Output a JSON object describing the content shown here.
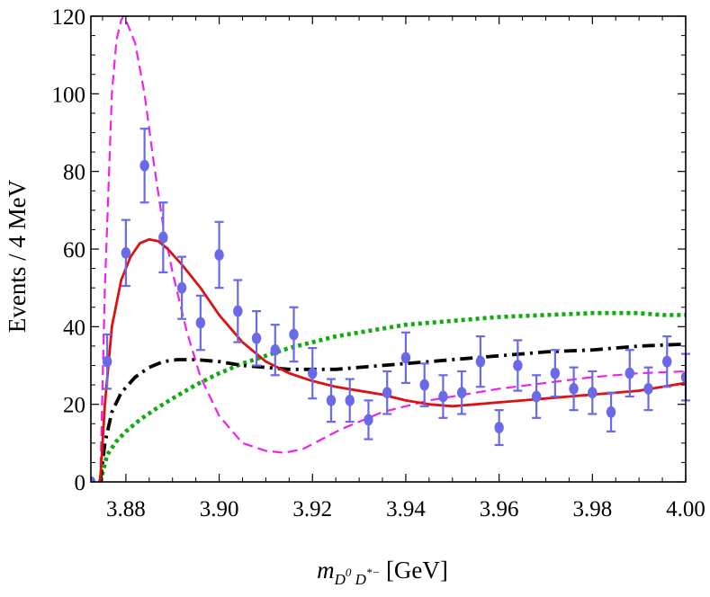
{
  "chart_data": {
    "type": "scatter",
    "xlabel": {
      "main": "m",
      "sub1": "D",
      "sup1": "0",
      "sub2": " D",
      "sup2": "*−",
      "unit": " [GeV]"
    },
    "ylabel": "Events / 4 MeV",
    "xlim": [
      3.8725,
      4.0
    ],
    "ylim": [
      0,
      120
    ],
    "x_ticks": [
      "3.88",
      "3.90",
      "3.92",
      "3.94",
      "3.96",
      "3.98",
      "4.00"
    ],
    "y_ticks": [
      "0",
      "20",
      "40",
      "60",
      "80",
      "100",
      "120"
    ],
    "grid": false,
    "series": [
      {
        "style": "points-with-errorbars",
        "color": "#6a6ae8",
        "points": [
          {
            "x": 3.8725,
            "y": 0,
            "err": 0
          },
          {
            "x": 3.876,
            "y": 31,
            "err": 7
          },
          {
            "x": 3.88,
            "y": 59,
            "err": 8.5
          },
          {
            "x": 3.884,
            "y": 81.5,
            "err": 9.5
          },
          {
            "x": 3.888,
            "y": 63,
            "err": 9
          },
          {
            "x": 3.892,
            "y": 50,
            "err": 8
          },
          {
            "x": 3.896,
            "y": 41,
            "err": 7
          },
          {
            "x": 3.9,
            "y": 58.5,
            "err": 8.5
          },
          {
            "x": 3.904,
            "y": 44,
            "err": 8
          },
          {
            "x": 3.908,
            "y": 37,
            "err": 7
          },
          {
            "x": 3.912,
            "y": 34,
            "err": 6.5
          },
          {
            "x": 3.916,
            "y": 38,
            "err": 7
          },
          {
            "x": 3.92,
            "y": 28,
            "err": 6.5
          },
          {
            "x": 3.924,
            "y": 21,
            "err": 5.5
          },
          {
            "x": 3.928,
            "y": 21,
            "err": 5.5
          },
          {
            "x": 3.932,
            "y": 16,
            "err": 5
          },
          {
            "x": 3.936,
            "y": 23,
            "err": 5.5
          },
          {
            "x": 3.94,
            "y": 32,
            "err": 6.5
          },
          {
            "x": 3.944,
            "y": 25,
            "err": 5.5
          },
          {
            "x": 3.948,
            "y": 22,
            "err": 5.5
          },
          {
            "x": 3.952,
            "y": 23,
            "err": 5.5
          },
          {
            "x": 3.956,
            "y": 31,
            "err": 6.5
          },
          {
            "x": 3.96,
            "y": 14,
            "err": 4.5
          },
          {
            "x": 3.964,
            "y": 30,
            "err": 6.5
          },
          {
            "x": 3.968,
            "y": 22,
            "err": 5.5
          },
          {
            "x": 3.972,
            "y": 28,
            "err": 6
          },
          {
            "x": 3.976,
            "y": 24,
            "err": 5.5
          },
          {
            "x": 3.98,
            "y": 23,
            "err": 5.5
          },
          {
            "x": 3.984,
            "y": 18,
            "err": 5
          },
          {
            "x": 3.988,
            "y": 28,
            "err": 6
          },
          {
            "x": 3.992,
            "y": 24,
            "err": 5.5
          },
          {
            "x": 3.996,
            "y": 31,
            "err": 6.5
          },
          {
            "x": 4.0,
            "y": 27,
            "err": 6
          }
        ]
      },
      {
        "style": "solid",
        "color": "#dd1111",
        "x": [
          3.8745,
          3.8755,
          3.877,
          3.879,
          3.881,
          3.883,
          3.885,
          3.887,
          3.889,
          3.892,
          3.896,
          3.9,
          3.905,
          3.91,
          3.915,
          3.92,
          3.925,
          3.93,
          3.935,
          3.94,
          3.945,
          3.95,
          3.955,
          3.96,
          3.965,
          3.97,
          3.975,
          3.98,
          3.985,
          3.99,
          3.995,
          4.0
        ],
        "y": [
          0,
          20,
          40,
          52,
          58,
          61.5,
          62.5,
          62,
          60,
          56,
          50,
          43,
          36,
          31,
          28,
          26,
          24.5,
          23.5,
          22.5,
          21,
          20,
          19.5,
          20,
          20.5,
          21,
          21.5,
          22,
          22.5,
          23,
          23.5,
          24.5,
          25.5
        ]
      },
      {
        "style": "dashed",
        "color": "#ee22ee",
        "x": [
          3.8745,
          3.8755,
          3.877,
          3.878,
          3.879,
          3.8795,
          3.88,
          3.882,
          3.884,
          3.886,
          3.888,
          3.89,
          3.893,
          3.896,
          3.9,
          3.905,
          3.91,
          3.914,
          3.918,
          3.922,
          3.926,
          3.93,
          3.935,
          3.94,
          3.945,
          3.95,
          3.96,
          3.97,
          3.98,
          3.99,
          4.0
        ],
        "y": [
          0,
          50,
          100,
          114,
          119,
          120,
          119,
          113,
          100,
          82,
          66,
          54,
          39,
          27,
          17,
          10,
          8,
          7.5,
          8.5,
          11,
          13.5,
          15.5,
          18,
          19.5,
          21,
          22,
          24,
          25.5,
          27,
          28,
          28.5
        ]
      },
      {
        "style": "dash-dot",
        "color": "#000000",
        "x": [
          3.8745,
          3.8755,
          3.877,
          3.879,
          3.882,
          3.885,
          3.888,
          3.891,
          3.895,
          3.9,
          3.905,
          3.91,
          3.915,
          3.92,
          3.925,
          3.93,
          3.94,
          3.95,
          3.96,
          3.97,
          3.98,
          3.99,
          4.0
        ],
        "y": [
          0,
          10,
          18,
          23,
          27,
          29.5,
          31,
          31.5,
          31.5,
          31,
          30,
          29.5,
          29,
          29,
          29,
          29.5,
          30.5,
          31.5,
          32.5,
          33.5,
          34,
          35,
          35.5
        ]
      },
      {
        "style": "dotted",
        "color": "#11aa11",
        "x": [
          3.8745,
          3.876,
          3.878,
          3.88,
          3.883,
          3.886,
          3.89,
          3.895,
          3.9,
          3.905,
          3.91,
          3.915,
          3.92,
          3.925,
          3.93,
          3.94,
          3.95,
          3.96,
          3.97,
          3.98,
          3.99,
          3.995,
          4.0
        ],
        "y": [
          0,
          7,
          10.5,
          13,
          16,
          18.5,
          21.5,
          25,
          28,
          30.5,
          32.5,
          34.5,
          36,
          37.5,
          38.5,
          40.5,
          41.5,
          42.5,
          43,
          43.5,
          43.5,
          43,
          43
        ]
      }
    ]
  }
}
